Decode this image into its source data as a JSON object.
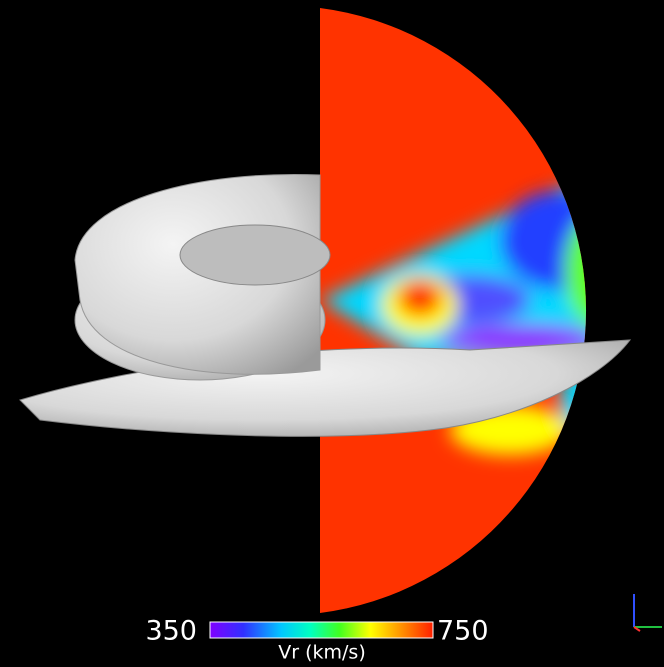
{
  "colorbar": {
    "min": 350,
    "max": 750,
    "title": "Vr (km/s)"
  }
}
